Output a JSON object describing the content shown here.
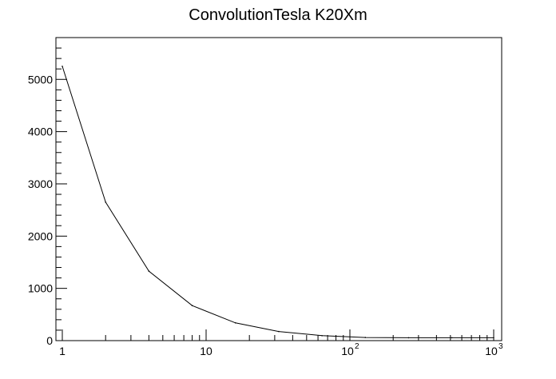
{
  "chart_data": {
    "type": "line",
    "title": "ConvolutionTesla K20Xm",
    "xlabel": "",
    "ylabel": "",
    "x_scale": "log",
    "xlim": [
      1,
      1000
    ],
    "ylim": [
      0,
      5800
    ],
    "grid": false,
    "x": [
      1,
      2,
      4,
      8,
      16,
      32,
      64,
      128,
      256,
      512,
      1000
    ],
    "series": [
      {
        "values": [
          5250,
          2650,
          1330,
          670,
          340,
          175,
          95,
          60,
          55,
          55,
          55
        ]
      }
    ],
    "y_ticks": [
      0,
      1000,
      2000,
      3000,
      4000,
      5000
    ],
    "y_tick_labels": [
      "0",
      "1000",
      "2000",
      "3000",
      "4000",
      "5000"
    ],
    "x_tick_labels": [
      {
        "value": 1,
        "base": "1",
        "exp": ""
      },
      {
        "value": 10,
        "base": "10",
        "exp": ""
      },
      {
        "value": 100,
        "base": "10",
        "exp": "2"
      },
      {
        "value": 1000,
        "base": "10",
        "exp": "3"
      }
    ]
  }
}
